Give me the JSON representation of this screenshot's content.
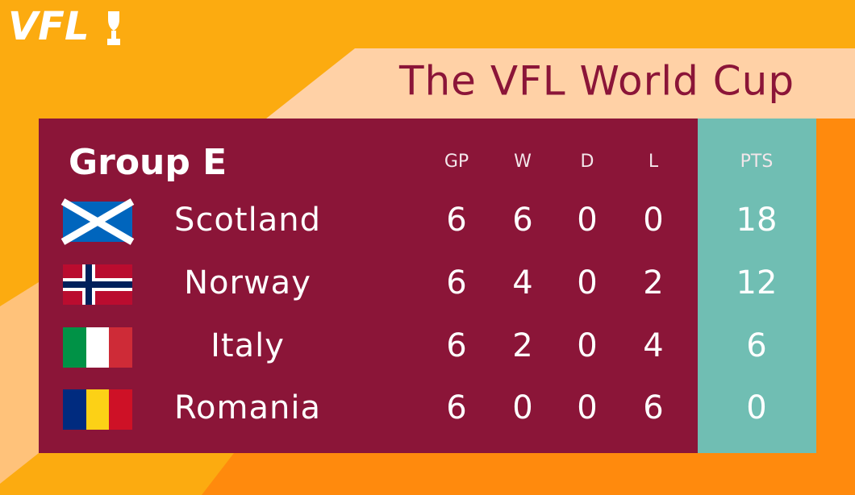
{
  "logo": "VFL",
  "title": "The VFL World Cup",
  "group": "Group E",
  "columns": [
    "GP",
    "W",
    "D",
    "L",
    "PTS"
  ],
  "rows": [
    {
      "team": "Scotland",
      "stats": [
        6,
        6,
        0,
        0,
        18
      ]
    },
    {
      "team": "Norway",
      "stats": [
        6,
        4,
        0,
        2,
        12
      ]
    },
    {
      "team": "Italy",
      "stats": [
        6,
        2,
        0,
        4,
        6
      ]
    },
    {
      "team": "Romania",
      "stats": [
        6,
        0,
        0,
        6,
        0
      ]
    }
  ]
}
